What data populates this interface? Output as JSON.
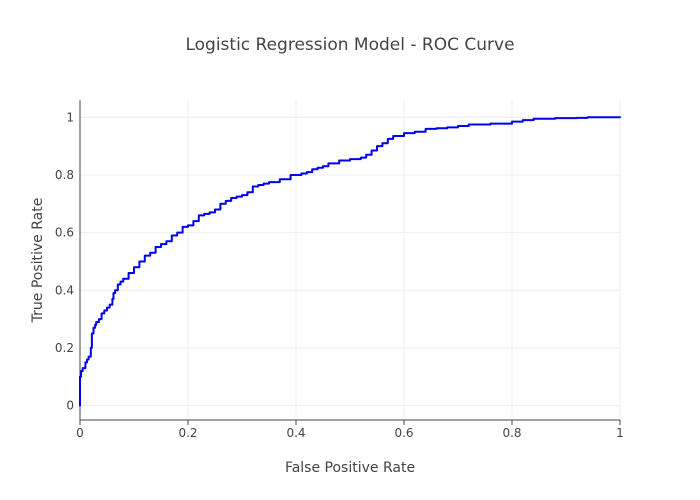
{
  "chart_data": {
    "type": "line",
    "title": "Logistic Regression Model - ROC Curve",
    "xlabel": "False Positive Rate",
    "ylabel": "True Positive Rate",
    "xlim": [
      0,
      1
    ],
    "ylim": [
      -0.05,
      1.06
    ],
    "x_ticks": [
      0,
      0.2,
      0.4,
      0.6,
      0.8,
      1
    ],
    "x_tick_labels": [
      "0",
      "0.2",
      "0.4",
      "0.6",
      "0.8",
      "1"
    ],
    "y_ticks": [
      0,
      0.2,
      0.4,
      0.6,
      0.8,
      1
    ],
    "y_tick_labels": [
      "0",
      "0.2",
      "0.4",
      "0.6",
      "0.8",
      "1"
    ],
    "grid": true,
    "legend": "none",
    "series": [
      {
        "color": "#0000ee",
        "x": [
          0,
          0,
          0.002,
          0.005,
          0.01,
          0.013,
          0.016,
          0.02,
          0.022,
          0.025,
          0.028,
          0.03,
          0.035,
          0.04,
          0.045,
          0.05,
          0.055,
          0.06,
          0.062,
          0.065,
          0.07,
          0.075,
          0.08,
          0.09,
          0.1,
          0.11,
          0.12,
          0.13,
          0.14,
          0.15,
          0.16,
          0.17,
          0.18,
          0.19,
          0.2,
          0.21,
          0.22,
          0.23,
          0.24,
          0.25,
          0.26,
          0.27,
          0.28,
          0.29,
          0.3,
          0.31,
          0.32,
          0.33,
          0.34,
          0.35,
          0.37,
          0.39,
          0.41,
          0.42,
          0.43,
          0.44,
          0.45,
          0.46,
          0.48,
          0.5,
          0.52,
          0.53,
          0.54,
          0.55,
          0.56,
          0.57,
          0.58,
          0.6,
          0.62,
          0.64,
          0.66,
          0.68,
          0.7,
          0.72,
          0.76,
          0.8,
          0.82,
          0.84,
          0.88,
          0.92,
          0.94,
          0.96,
          1
        ],
        "y": [
          0,
          0.1,
          0.12,
          0.13,
          0.15,
          0.16,
          0.17,
          0.2,
          0.25,
          0.27,
          0.28,
          0.29,
          0.3,
          0.32,
          0.33,
          0.34,
          0.35,
          0.37,
          0.39,
          0.4,
          0.42,
          0.43,
          0.44,
          0.46,
          0.48,
          0.5,
          0.52,
          0.53,
          0.55,
          0.56,
          0.57,
          0.59,
          0.6,
          0.62,
          0.625,
          0.64,
          0.66,
          0.665,
          0.67,
          0.68,
          0.7,
          0.71,
          0.72,
          0.725,
          0.73,
          0.74,
          0.76,
          0.765,
          0.77,
          0.775,
          0.785,
          0.8,
          0.805,
          0.81,
          0.82,
          0.825,
          0.83,
          0.84,
          0.85,
          0.855,
          0.86,
          0.87,
          0.885,
          0.9,
          0.91,
          0.925,
          0.935,
          0.945,
          0.95,
          0.96,
          0.962,
          0.965,
          0.97,
          0.975,
          0.978,
          0.985,
          0.99,
          0.995,
          0.997,
          0.998,
          1,
          1,
          1
        ]
      }
    ]
  }
}
